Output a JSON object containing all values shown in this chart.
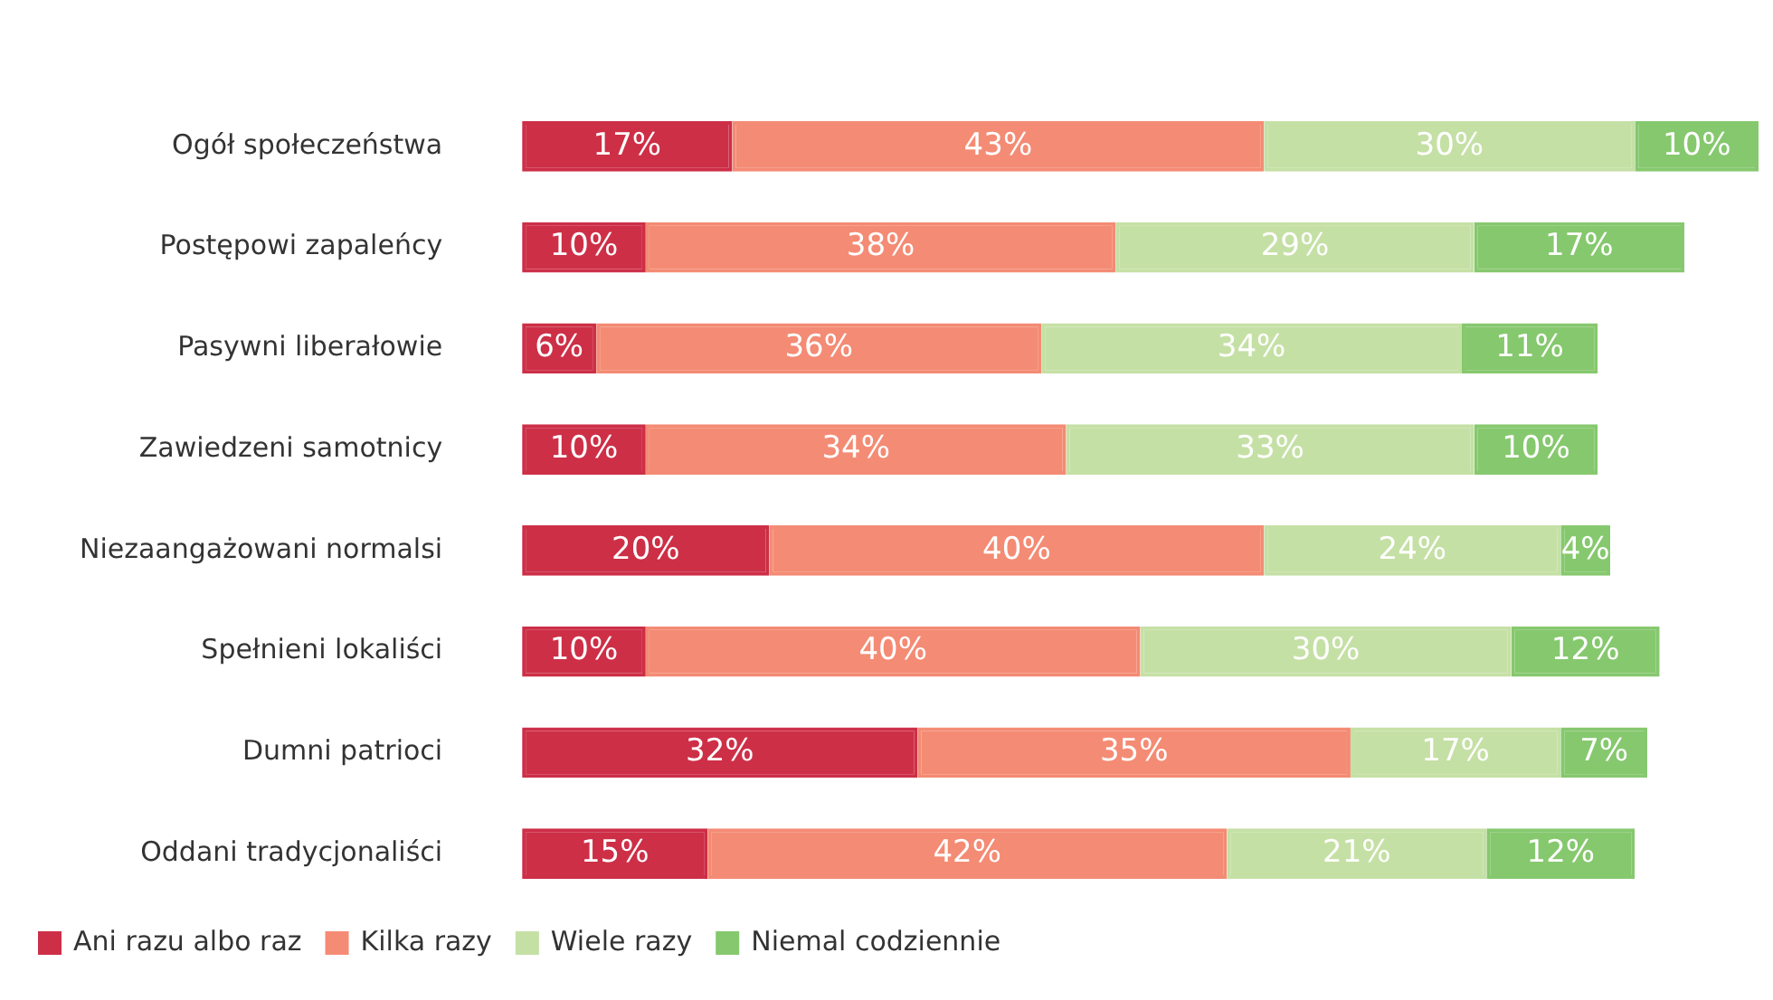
{
  "chart_data": {
    "type": "bar",
    "orientation": "horizontal",
    "stacked": true,
    "legend": "bottom left",
    "categories": [
      "Ogół społeczeństwa",
      "Postępowi zapaleńcy",
      "Pasywni liberałowie",
      "Zawiedzeni samotnicy",
      "Niezaangażowani normalsi",
      "Spełnieni lokaliści",
      "Dumni patrioci",
      "Oddani tradycjonaliści"
    ],
    "series": [
      {
        "name": "Ani razu albo raz",
        "color": "#cd2f47",
        "values": [
          17,
          10,
          6,
          10,
          20,
          10,
          32,
          15
        ],
        "value_labels": [
          "17%",
          "10%",
          "6%",
          "10%",
          "20%",
          "10%",
          "32%",
          "15%"
        ]
      },
      {
        "name": "Kilka razy",
        "color": "#f48b74",
        "values": [
          43,
          38,
          36,
          34,
          40,
          40,
          35,
          42
        ],
        "value_labels": [
          "43%",
          "38%",
          "36%",
          "34%",
          "40%",
          "40%",
          "35%",
          "42%"
        ]
      },
      {
        "name": "Wiele razy",
        "color": "#c5e0a5",
        "values": [
          30,
          29,
          34,
          33,
          24,
          30,
          17,
          21
        ],
        "value_labels": [
          "30%",
          "29%",
          "34%",
          "33%",
          "24%",
          "30%",
          "17%",
          "21%"
        ]
      },
      {
        "name": "Niemal codziennie",
        "color": "#86c86e",
        "values": [
          10,
          17,
          11,
          10,
          4,
          12,
          7,
          12
        ],
        "value_labels": [
          "10%",
          "17%",
          "11%",
          "10%",
          "4%",
          "12%",
          "7%",
          "12%"
        ]
      }
    ]
  }
}
